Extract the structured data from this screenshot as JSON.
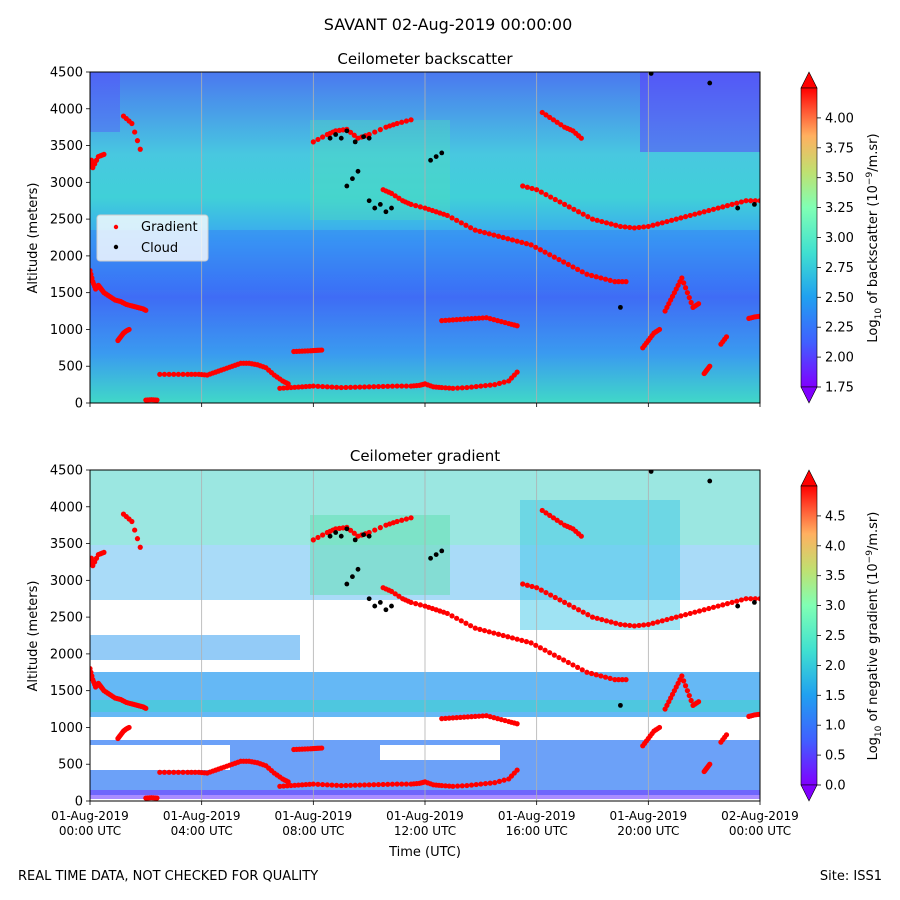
{
  "figure": {
    "suptitle": "SAVANT 02-Aug-2019 00:00:00",
    "footer_left": "REAL TIME DATA, NOT CHECKED FOR QUALITY",
    "footer_right": "Site: ISS1"
  },
  "colors": {
    "gradient_marker": "#ff0000",
    "cloud_marker": "#000000",
    "grid": "#b0b0b0",
    "colormap": [
      "#8000ff",
      "#4060ff",
      "#20a0f0",
      "#40e0d0",
      "#80ffb4",
      "#c0e070",
      "#ffb060",
      "#ff5030",
      "#ff0000"
    ]
  },
  "chart_data": [
    {
      "type": "heatmap",
      "title": "Ceilometer backscatter",
      "ylabel": "Altitude (meters)",
      "ylim": [
        0,
        4500
      ],
      "yticks": [
        "0",
        "500",
        "1000",
        "1500",
        "2000",
        "2500",
        "3000",
        "3500",
        "4000",
        "4500"
      ],
      "colorbar": {
        "label_prefix": "Log",
        "label_sub": "10",
        "label_mid": " of backscatter (10",
        "label_sup": "−9",
        "label_suffix": "/m.sr)",
        "range": [
          1.75,
          4.25
        ],
        "ticks": [
          "1.75",
          "2.00",
          "2.25",
          "2.50",
          "2.75",
          "3.00",
          "3.25",
          "3.50",
          "3.75",
          "4.00"
        ],
        "extend": "both"
      },
      "legend": {
        "placement": "center-left",
        "entries": [
          "Gradient",
          "Cloud"
        ]
      }
    },
    {
      "type": "heatmap",
      "title": "Ceilometer gradient",
      "ylabel": "Altitude (meters)",
      "xlabel": "Time (UTC)",
      "ylim": [
        0,
        4500
      ],
      "yticks": [
        "0",
        "500",
        "1000",
        "1500",
        "2000",
        "2500",
        "3000",
        "3500",
        "4000",
        "4500"
      ],
      "colorbar": {
        "label_prefix": "Log",
        "label_sub": "10",
        "label_mid": " of negative gradient (10",
        "label_sup": "−9",
        "label_suffix": "/m.sr)",
        "range": [
          0.0,
          5.0
        ],
        "ticks": [
          "0.0",
          "0.5",
          "1.0",
          "1.5",
          "2.0",
          "2.5",
          "3.0",
          "3.5",
          "4.0",
          "4.5"
        ],
        "extend": "both"
      }
    }
  ],
  "x_axis": {
    "range_hours": [
      0,
      24
    ],
    "ticks": [
      {
        "h": 0,
        "l1": "01-Aug-2019",
        "l2": "00:00 UTC"
      },
      {
        "h": 4,
        "l1": "01-Aug-2019",
        "l2": "04:00 UTC"
      },
      {
        "h": 8,
        "l1": "01-Aug-2019",
        "l2": "08:00 UTC"
      },
      {
        "h": 12,
        "l1": "01-Aug-2019",
        "l2": "12:00 UTC"
      },
      {
        "h": 16,
        "l1": "01-Aug-2019",
        "l2": "16:00 UTC"
      },
      {
        "h": 20,
        "l1": "01-Aug-2019",
        "l2": "20:00 UTC"
      },
      {
        "h": 24,
        "l1": "02-Aug-2019",
        "l2": "00:00 UTC"
      }
    ]
  },
  "gradient_series": [
    {
      "h": [
        0.0,
        0.1,
        0.2,
        0.3,
        0.4,
        0.5,
        0.7,
        0.9,
        1.1,
        1.3,
        1.5,
        1.7,
        1.9,
        2.0
      ],
      "y": [
        1800,
        1650,
        1550,
        1600,
        1550,
        1500,
        1450,
        1400,
        1380,
        1340,
        1320,
        1300,
        1280,
        1260
      ]
    },
    {
      "h": [
        1.0,
        1.1,
        1.2,
        1.3,
        1.4
      ],
      "y": [
        850,
        900,
        950,
        980,
        1000
      ]
    },
    {
      "h": [
        2.5,
        3.0,
        3.5,
        3.9,
        4.2,
        4.5,
        4.8,
        5.1,
        5.4,
        5.7,
        6.0,
        6.3,
        6.6,
        6.9,
        7.1
      ],
      "y": [
        390,
        390,
        390,
        390,
        380,
        420,
        460,
        500,
        540,
        540,
        520,
        480,
        380,
        300,
        260
      ]
    },
    {
      "h": [
        6.8,
        7.2,
        7.6,
        8.0,
        8.5,
        9.0,
        9.5,
        10.0,
        10.5,
        11.0,
        11.5,
        11.8,
        12.0,
        12.3,
        12.6,
        13.0,
        13.5,
        14.0,
        14.5,
        15.0,
        15.3
      ],
      "y": [
        200,
        210,
        220,
        230,
        220,
        210,
        215,
        220,
        225,
        230,
        230,
        240,
        260,
        220,
        210,
        200,
        210,
        230,
        250,
        300,
        420
      ]
    },
    {
      "h": [
        7.3,
        7.6,
        7.9,
        8.1,
        8.3
      ],
      "y": [
        700,
        705,
        710,
        715,
        720
      ]
    },
    {
      "h": [
        12.6,
        13.0,
        13.4,
        13.8,
        14.2,
        14.6,
        15.0,
        15.3
      ],
      "y": [
        1120,
        1130,
        1140,
        1150,
        1160,
        1120,
        1080,
        1050
      ]
    },
    {
      "h": [
        8.0,
        8.5,
        8.8,
        9.2,
        9.6,
        10.0,
        10.6,
        11.0,
        11.5
      ],
      "y": [
        3550,
        3650,
        3700,
        3720,
        3600,
        3650,
        3750,
        3800,
        3850
      ]
    },
    {
      "h": [
        10.5,
        10.8,
        11.2,
        11.5,
        12.0,
        12.4,
        12.8,
        13.3,
        13.8,
        14.3,
        14.8,
        15.3,
        15.8,
        16.3,
        16.8,
        17.3,
        17.8,
        18.3,
        18.8,
        19.2
      ],
      "y": [
        2900,
        2850,
        2750,
        2700,
        2650,
        2600,
        2550,
        2450,
        2350,
        2300,
        2250,
        2200,
        2150,
        2050,
        1950,
        1850,
        1750,
        1700,
        1650,
        1650
      ]
    },
    {
      "h": [
        15.5,
        16.0,
        16.5,
        17.0,
        17.5,
        18.0,
        18.5,
        19.0,
        19.5,
        20.0,
        20.5,
        21.0,
        21.5,
        22.0,
        22.5,
        23.0,
        23.5,
        24.0
      ],
      "y": [
        2950,
        2900,
        2800,
        2700,
        2600,
        2500,
        2450,
        2400,
        2380,
        2400,
        2450,
        2500,
        2550,
        2600,
        2650,
        2700,
        2750,
        2750
      ]
    },
    {
      "h": [
        16.2,
        16.6,
        17.0,
        17.3,
        17.6
      ],
      "y": [
        3950,
        3850,
        3750,
        3700,
        3600
      ]
    },
    {
      "h": [
        20.6,
        20.8,
        21.0,
        21.2,
        21.4,
        21.6,
        21.8
      ],
      "y": [
        1250,
        1400,
        1550,
        1700,
        1500,
        1300,
        1350
      ]
    },
    {
      "h": [
        19.8,
        20.0,
        20.2,
        20.4
      ],
      "y": [
        750,
        850,
        950,
        1000
      ]
    },
    {
      "h": [
        22.0,
        22.1,
        22.2
      ],
      "y": [
        400,
        450,
        500
      ]
    },
    {
      "h": [
        22.6,
        22.8
      ],
      "y": [
        800,
        900
      ]
    },
    {
      "h": [
        23.6,
        23.8,
        24.0
      ],
      "y": [
        1150,
        1170,
        1180
      ]
    },
    {
      "h": [
        0.05,
        0.1,
        0.3,
        0.5
      ],
      "y": [
        3300,
        3200,
        3350,
        3380
      ]
    },
    {
      "h": [
        1.2,
        1.5,
        1.8
      ],
      "y": [
        3900,
        3800,
        3450
      ]
    },
    {
      "h": [
        2.0,
        2.2,
        2.4
      ],
      "y": [
        40,
        45,
        40
      ]
    }
  ],
  "cloud_series": [
    {
      "h": [
        8.6,
        8.8,
        9.0,
        9.2,
        9.5,
        9.8,
        10.0
      ],
      "y": [
        3600,
        3650,
        3600,
        3700,
        3550,
        3620,
        3600
      ]
    },
    {
      "h": [
        9.2,
        9.4,
        9.6
      ],
      "y": [
        2950,
        3050,
        3150
      ]
    },
    {
      "h": [
        10.0,
        10.2,
        10.4,
        10.6,
        10.8
      ],
      "y": [
        2750,
        2650,
        2700,
        2600,
        2650
      ]
    },
    {
      "h": [
        12.2,
        12.4,
        12.6
      ],
      "y": [
        3300,
        3350,
        3400
      ]
    },
    {
      "h": [
        20.1,
        22.2,
        23.2,
        23.8
      ],
      "y": [
        4480,
        4350,
        2650,
        2700
      ]
    },
    {
      "h": [
        19.0
      ],
      "y": [
        1300
      ]
    }
  ]
}
